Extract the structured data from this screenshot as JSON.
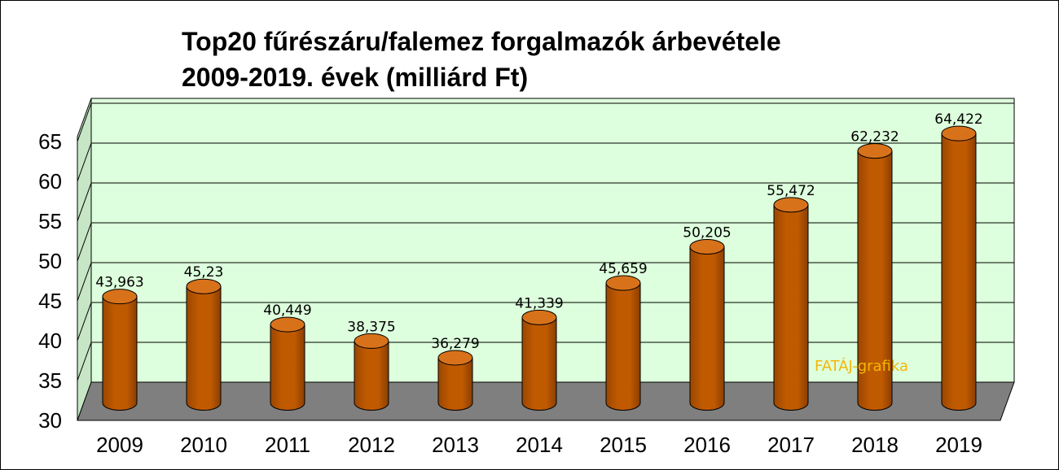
{
  "chart_data": {
    "type": "bar",
    "title": [
      "Top20 fűrészáru/falemez forgalmazók árbevétele",
      "2009-2019. évek (milliárd Ft)"
    ],
    "categories": [
      "2009",
      "2010",
      "2011",
      "2012",
      "2013",
      "2014",
      "2015",
      "2016",
      "2017",
      "2018",
      "2019"
    ],
    "values": [
      43.963,
      45.23,
      40.449,
      38.375,
      36.279,
      41.339,
      45.659,
      50.205,
      55.472,
      62.232,
      64.422
    ],
    "value_labels": [
      "43,963",
      "45,23",
      "40,449",
      "38,375",
      "36,279",
      "41,339",
      "45,659",
      "50,205",
      "55,472",
      "62,232",
      "64,422"
    ],
    "ylim": [
      30,
      65
    ],
    "yticks": [
      "30",
      "35",
      "40",
      "45",
      "50",
      "55",
      "60",
      "65"
    ],
    "grid": true,
    "legend": "none",
    "annotation": "FATÁJ-grafika",
    "colors": {
      "bar": "#c05a00",
      "bar_top": "#d8721a",
      "wall": "#ddffdd",
      "floor": "#7f7f7f",
      "annotation": "#f2b705"
    }
  }
}
